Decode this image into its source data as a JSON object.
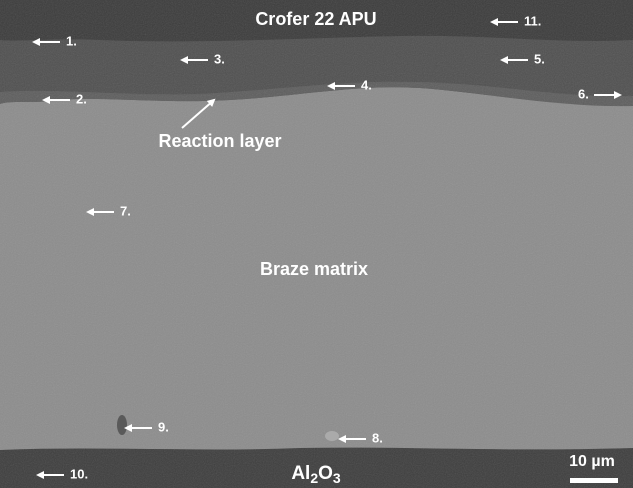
{
  "header": {
    "title": "Crofer 22 APU"
  },
  "regions": {
    "reaction_layer": "Reaction layer",
    "braze_matrix": "Braze matrix",
    "substrate": [
      "Al",
      "2",
      "O",
      "3"
    ]
  },
  "points": [
    "1.",
    "2.",
    "3.",
    "4.",
    "5.",
    "6.",
    "7.",
    "8.",
    "9.",
    "10.",
    "11."
  ],
  "scale_bar": "10 µm"
}
